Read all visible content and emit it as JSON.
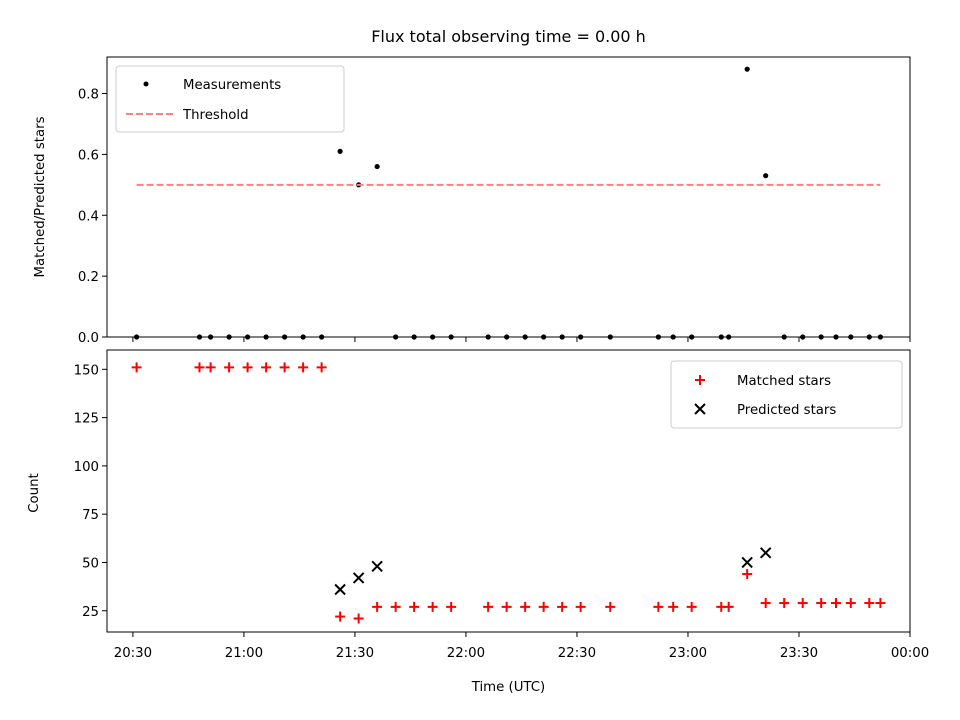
{
  "chart_data": [
    {
      "type": "scatter",
      "title": "Flux total observing time = 0.00 h",
      "xlabel": "",
      "ylabel": "Matched/Predicted stars",
      "xlim": [
        "20:23",
        "00:00"
      ],
      "ylim": [
        0,
        0.92
      ],
      "yticks": [
        "0.0",
        "0.2",
        "0.4",
        "0.6",
        "0.8"
      ],
      "ytick_values": [
        0,
        0.2,
        0.4,
        0.6,
        0.8
      ],
      "legend_position": "upper-left",
      "series": [
        {
          "name": "Measurements",
          "marker": "dot",
          "color": "#000000",
          "points": [
            [
              "20:31",
              0
            ],
            [
              "20:48",
              0
            ],
            [
              "20:51",
              0
            ],
            [
              "20:56",
              0
            ],
            [
              "21:01",
              0
            ],
            [
              "21:06",
              0
            ],
            [
              "21:11",
              0
            ],
            [
              "21:16",
              0
            ],
            [
              "21:21",
              0
            ],
            [
              "21:26",
              0.61
            ],
            [
              "21:31",
              0.5
            ],
            [
              "21:36",
              0.56
            ],
            [
              "21:41",
              0
            ],
            [
              "21:46",
              0
            ],
            [
              "21:51",
              0
            ],
            [
              "21:56",
              0
            ],
            [
              "22:06",
              0
            ],
            [
              "22:11",
              0
            ],
            [
              "22:16",
              0
            ],
            [
              "22:21",
              0
            ],
            [
              "22:26",
              0
            ],
            [
              "22:31",
              0
            ],
            [
              "22:39",
              0
            ],
            [
              "22:52",
              0
            ],
            [
              "22:56",
              0
            ],
            [
              "23:01",
              0
            ],
            [
              "23:09",
              0
            ],
            [
              "23:11",
              0
            ],
            [
              "23:16",
              0.88
            ],
            [
              "23:21",
              0.53
            ],
            [
              "23:26",
              0
            ],
            [
              "23:31",
              0
            ],
            [
              "23:36",
              0
            ],
            [
              "23:40",
              0
            ],
            [
              "23:44",
              0
            ],
            [
              "23:49",
              0
            ],
            [
              "23:52",
              0
            ]
          ]
        },
        {
          "name": "Threshold",
          "style": "dashed",
          "color": "#ff7f7f",
          "points": [
            [
              "20:31",
              0.5
            ],
            [
              "23:52",
              0.5
            ]
          ]
        }
      ]
    },
    {
      "type": "scatter",
      "title": "",
      "xlabel": "Time (UTC)",
      "ylabel": "Count",
      "xlim": [
        "20:23",
        "00:00"
      ],
      "ylim": [
        14,
        160
      ],
      "yticks": [
        "25",
        "50",
        "75",
        "100",
        "125",
        "150"
      ],
      "ytick_values": [
        25,
        50,
        75,
        100,
        125,
        150
      ],
      "xticks": [
        "20:30",
        "21:00",
        "21:30",
        "22:00",
        "22:30",
        "23:00",
        "23:30",
        "00:00"
      ],
      "legend_position": "upper-right",
      "series": [
        {
          "name": "Matched stars",
          "marker": "plus",
          "color": "#ff0000",
          "points": [
            [
              "20:31",
              151
            ],
            [
              "20:48",
              151
            ],
            [
              "20:51",
              151
            ],
            [
              "20:56",
              151
            ],
            [
              "21:01",
              151
            ],
            [
              "21:06",
              151
            ],
            [
              "21:11",
              151
            ],
            [
              "21:16",
              151
            ],
            [
              "21:21",
              151
            ],
            [
              "21:26",
              22
            ],
            [
              "21:31",
              21
            ],
            [
              "21:36",
              27
            ],
            [
              "21:41",
              27
            ],
            [
              "21:46",
              27
            ],
            [
              "21:51",
              27
            ],
            [
              "21:56",
              27
            ],
            [
              "22:06",
              27
            ],
            [
              "22:11",
              27
            ],
            [
              "22:16",
              27
            ],
            [
              "22:21",
              27
            ],
            [
              "22:26",
              27
            ],
            [
              "22:31",
              27
            ],
            [
              "22:39",
              27
            ],
            [
              "22:52",
              27
            ],
            [
              "22:56",
              27
            ],
            [
              "23:01",
              27
            ],
            [
              "23:09",
              27
            ],
            [
              "23:11",
              27
            ],
            [
              "23:16",
              44
            ],
            [
              "23:21",
              29
            ],
            [
              "23:26",
              29
            ],
            [
              "23:31",
              29
            ],
            [
              "23:36",
              29
            ],
            [
              "23:40",
              29
            ],
            [
              "23:44",
              29
            ],
            [
              "23:49",
              29
            ],
            [
              "23:52",
              29
            ]
          ]
        },
        {
          "name": "Predicted stars",
          "marker": "x",
          "color": "#000000",
          "points": [
            [
              "21:26",
              36
            ],
            [
              "21:31",
              42
            ],
            [
              "21:36",
              48
            ],
            [
              "23:16",
              50
            ],
            [
              "23:21",
              55
            ]
          ]
        }
      ]
    }
  ]
}
